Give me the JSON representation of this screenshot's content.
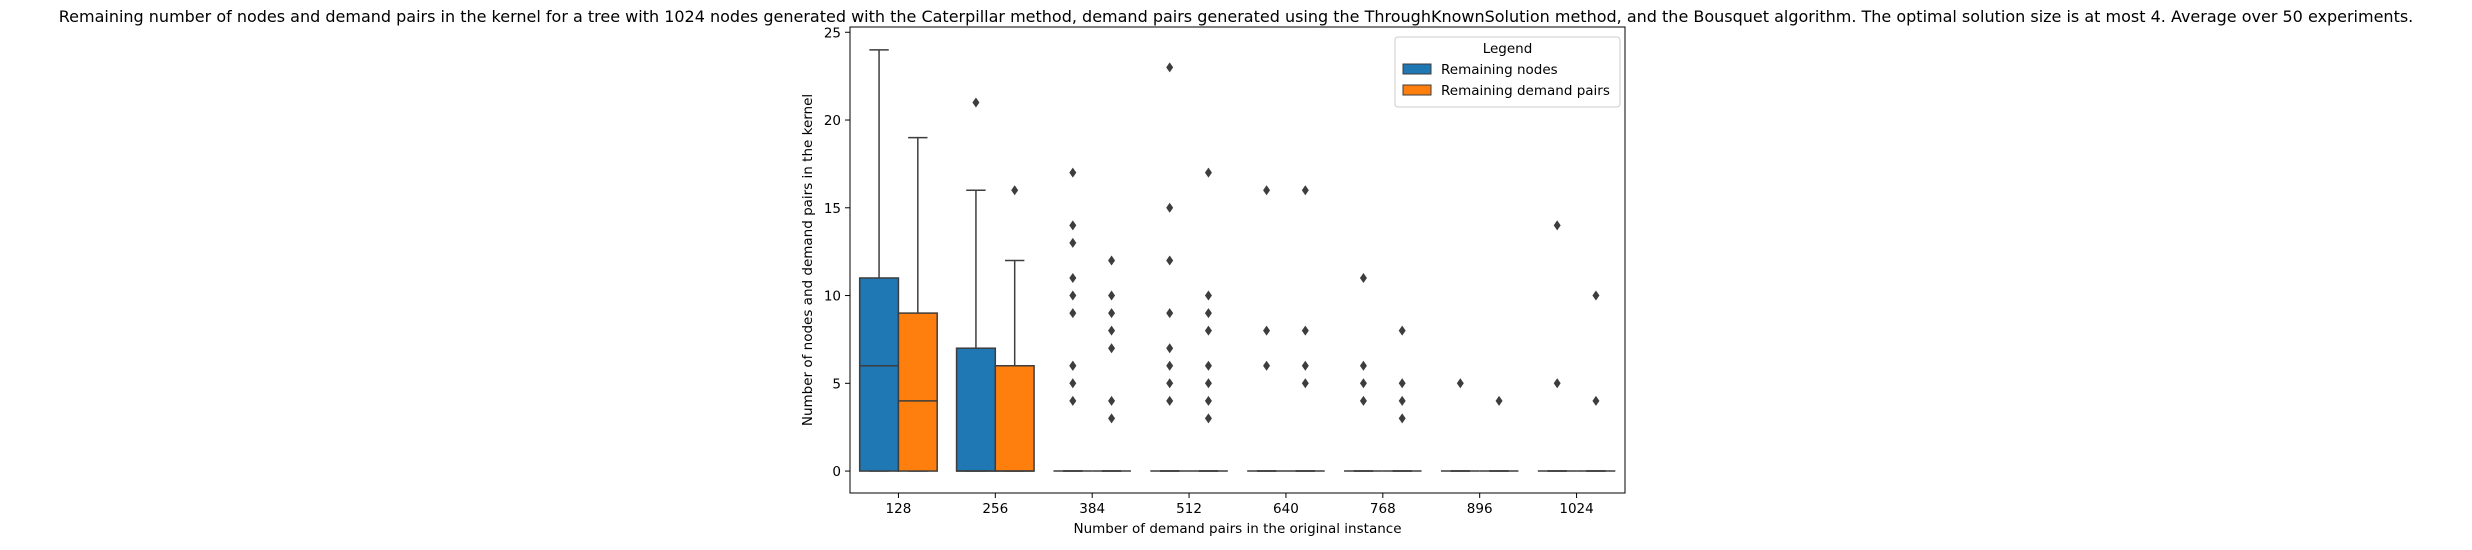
{
  "chart_data": {
    "type": "box",
    "title": "Remaining number of nodes and demand pairs in the kernel for a tree with 1024 nodes generated with the Caterpillar method, demand pairs generated using the ThroughKnownSolution method, and the Bousquet algorithm. The optimal solution size is at most 4. Average over 50 experiments.",
    "xlabel": "Number of demand pairs in the original instance",
    "ylabel": "Number of nodes and demand pairs in the kernel",
    "categories": [
      "128",
      "256",
      "384",
      "512",
      "640",
      "768",
      "896",
      "1024"
    ],
    "ylim": [
      -1.25,
      25.3
    ],
    "yticks": [
      0,
      5,
      10,
      15,
      20,
      25
    ],
    "grid": false,
    "legend": {
      "title": "Legend",
      "position": "top-right",
      "entries": [
        "Remaining nodes",
        "Remaining demand pairs"
      ]
    },
    "series": [
      {
        "name": "Remaining nodes",
        "color": "#1f77b4",
        "boxes": [
          {
            "q1": 0,
            "median": 6,
            "q3": 11,
            "whisker_low": 0,
            "whisker_high": 24,
            "outliers": []
          },
          {
            "q1": 0,
            "median": 0,
            "q3": 7,
            "whisker_low": 0,
            "whisker_high": 16,
            "outliers": [
              21
            ]
          },
          {
            "q1": 0,
            "median": 0,
            "q3": 0,
            "whisker_low": 0,
            "whisker_high": 0,
            "outliers": [
              4,
              5,
              6,
              6,
              9,
              10,
              11,
              13,
              14,
              17
            ]
          },
          {
            "q1": 0,
            "median": 0,
            "q3": 0,
            "whisker_low": 0,
            "whisker_high": 0,
            "outliers": [
              4,
              5,
              6,
              7,
              9,
              12,
              15,
              23
            ]
          },
          {
            "q1": 0,
            "median": 0,
            "q3": 0,
            "whisker_low": 0,
            "whisker_high": 0,
            "outliers": [
              6,
              8,
              16
            ]
          },
          {
            "q1": 0,
            "median": 0,
            "q3": 0,
            "whisker_low": 0,
            "whisker_high": 0,
            "outliers": [
              4,
              5,
              6,
              11
            ]
          },
          {
            "q1": 0,
            "median": 0,
            "q3": 0,
            "whisker_low": 0,
            "whisker_high": 0,
            "outliers": [
              5
            ]
          },
          {
            "q1": 0,
            "median": 0,
            "q3": 0,
            "whisker_low": 0,
            "whisker_high": 0,
            "outliers": [
              5,
              14
            ]
          }
        ]
      },
      {
        "name": "Remaining demand pairs",
        "color": "#ff7f0e",
        "boxes": [
          {
            "q1": 0,
            "median": 4,
            "q3": 9,
            "whisker_low": 0,
            "whisker_high": 19,
            "outliers": []
          },
          {
            "q1": 0,
            "median": 0,
            "q3": 6,
            "whisker_low": 0,
            "whisker_high": 12,
            "outliers": [
              16
            ]
          },
          {
            "q1": 0,
            "median": 0,
            "q3": 0,
            "whisker_low": 0,
            "whisker_high": 0,
            "outliers": [
              3,
              4,
              7,
              8,
              9,
              10,
              12
            ]
          },
          {
            "q1": 0,
            "median": 0,
            "q3": 0,
            "whisker_low": 0,
            "whisker_high": 0,
            "outliers": [
              3,
              4,
              5,
              6,
              8,
              9,
              10,
              17
            ]
          },
          {
            "q1": 0,
            "median": 0,
            "q3": 0,
            "whisker_low": 0,
            "whisker_high": 0,
            "outliers": [
              5,
              6,
              8,
              16
            ]
          },
          {
            "q1": 0,
            "median": 0,
            "q3": 0,
            "whisker_low": 0,
            "whisker_high": 0,
            "outliers": [
              3,
              4,
              5,
              8
            ]
          },
          {
            "q1": 0,
            "median": 0,
            "q3": 0,
            "whisker_low": 0,
            "whisker_high": 0,
            "outliers": [
              4
            ]
          },
          {
            "q1": 0,
            "median": 0,
            "q3": 0,
            "whisker_low": 0,
            "whisker_high": 0,
            "outliers": [
              4,
              10
            ]
          }
        ]
      }
    ]
  }
}
